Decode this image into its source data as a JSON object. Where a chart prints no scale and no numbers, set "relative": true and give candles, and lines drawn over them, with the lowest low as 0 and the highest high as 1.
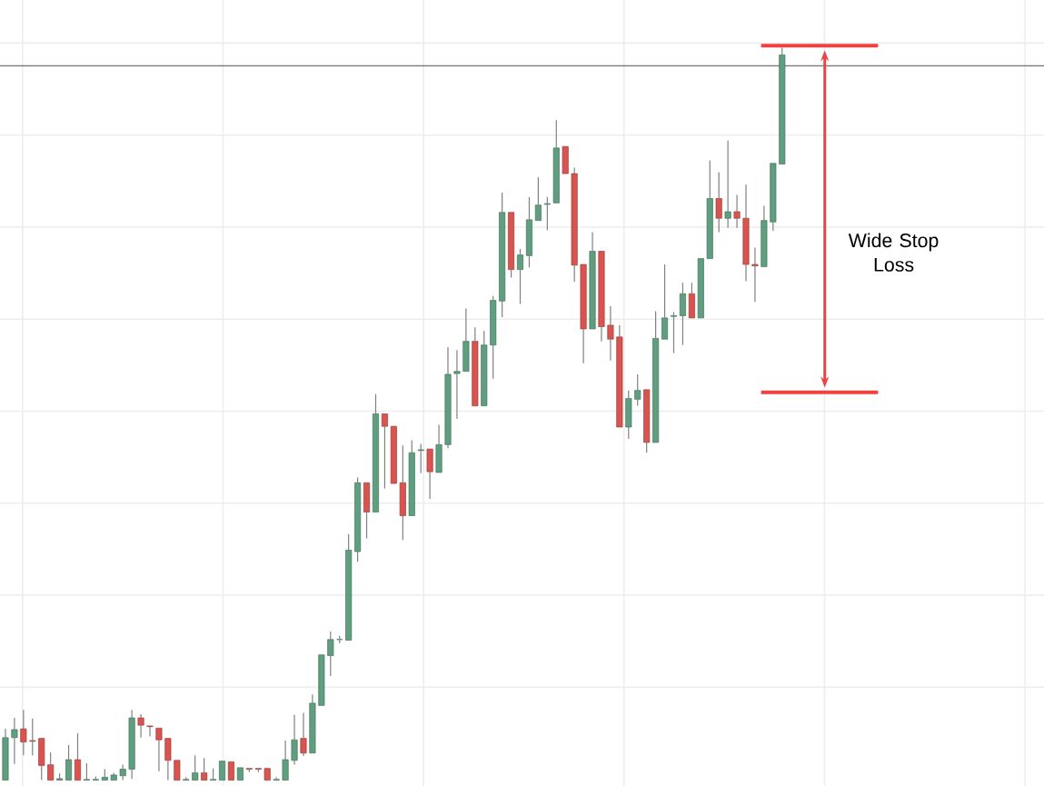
{
  "chart_data": {
    "type": "candlestick",
    "relative": true,
    "grid": true,
    "categories": [
      null,
      null,
      null,
      null,
      null,
      null,
      null,
      null,
      null,
      null,
      null,
      null,
      null,
      null,
      null,
      null,
      null,
      null,
      null,
      null,
      null,
      null,
      null,
      null,
      null,
      null,
      null,
      null,
      null,
      null,
      null,
      null,
      null,
      null,
      null,
      null,
      null,
      null,
      null,
      null,
      null,
      null,
      null,
      null,
      null,
      null,
      null,
      null,
      null,
      null,
      null,
      null,
      null,
      null,
      null,
      null,
      null,
      null,
      null,
      null,
      null,
      null,
      null,
      null,
      null,
      null,
      null,
      null,
      null,
      null,
      null,
      null,
      null,
      null,
      null,
      null,
      null,
      null,
      null,
      null,
      null,
      null,
      null,
      null,
      null,
      null,
      null
    ],
    "ohlc": [
      [
        0,
        0.07,
        0,
        0.058
      ],
      [
        0.058,
        0.085,
        0.022,
        0.069
      ],
      [
        0.07,
        0.096,
        0.034,
        0.052
      ],
      [
        0.054,
        0.084,
        0.034,
        0.053
      ],
      [
        0.057,
        0.057,
        0,
        0.02
      ],
      [
        0.021,
        0.038,
        0,
        0
      ],
      [
        0,
        0.009,
        0,
        0.002
      ],
      [
        0,
        0.048,
        0,
        0.028
      ],
      [
        0.028,
        0.064,
        0,
        0
      ],
      [
        0,
        0.023,
        0,
        0.001
      ],
      [
        0,
        0.005,
        0,
        0.001
      ],
      [
        0,
        0.015,
        0,
        0.004
      ],
      [
        0,
        0.01,
        0,
        0.007
      ],
      [
        0.006,
        0.021,
        0,
        0.015
      ],
      [
        0.015,
        0.096,
        0.002,
        0.085
      ],
      [
        0.085,
        0.09,
        0.058,
        0.075
      ],
      [
        0.074,
        0.074,
        0.06,
        0.073
      ],
      [
        0.071,
        0.071,
        0.012,
        0.055
      ],
      [
        0.057,
        0.057,
        0,
        0.027
      ],
      [
        0.027,
        0.027,
        0,
        0
      ],
      [
        0,
        0.004,
        0,
        0.001
      ],
      [
        0,
        0.034,
        0,
        0.01
      ],
      [
        0.01,
        0.03,
        0,
        0
      ],
      [
        0,
        0.016,
        0,
        0.001
      ],
      [
        0,
        0.026,
        0,
        0.026
      ],
      [
        0.025,
        0.025,
        0,
        0
      ],
      [
        0,
        0.017,
        0,
        0.017
      ],
      [
        0.016,
        0.016,
        0.011,
        0.015
      ],
      [
        0.016,
        0.016,
        0.011,
        0.015
      ],
      [
        0.016,
        0.016,
        0,
        0
      ],
      [
        0,
        0.004,
        0,
        0.001
      ],
      [
        0,
        0.054,
        0,
        0.028
      ],
      [
        0.027,
        0.089,
        0.021,
        0.055
      ],
      [
        0.057,
        0.092,
        0.033,
        0.037
      ],
      [
        0.037,
        0.117,
        0.037,
        0.105
      ],
      [
        0.102,
        0.171,
        0.102,
        0.171
      ],
      [
        0.17,
        0.203,
        0.142,
        0.192
      ],
      [
        0.192,
        0.197,
        0.187,
        0.192
      ],
      [
        0.191,
        0.336,
        0.191,
        0.314
      ],
      [
        0.312,
        0.413,
        0.298,
        0.406
      ],
      [
        0.406,
        0.406,
        0.33,
        0.366
      ],
      [
        0.366,
        0.527,
        0.366,
        0.5
      ],
      [
        0.5,
        0.5,
        0.398,
        0.483
      ],
      [
        0.483,
        0.483,
        0.405,
        0.405
      ],
      [
        0.406,
        0.457,
        0.328,
        0.361
      ],
      [
        0.361,
        0.464,
        0.361,
        0.447
      ],
      [
        0.45,
        0.459,
        0.419,
        0.451
      ],
      [
        0.452,
        0.452,
        0.384,
        0.421
      ],
      [
        0.42,
        0.485,
        0.42,
        0.458
      ],
      [
        0.458,
        0.591,
        0.453,
        0.554
      ],
      [
        0.555,
        0.587,
        0.493,
        0.558
      ],
      [
        0.558,
        0.644,
        0.558,
        0.599
      ],
      [
        0.599,
        0.618,
        0.511,
        0.511
      ],
      [
        0.511,
        0.613,
        0.511,
        0.594
      ],
      [
        0.594,
        0.661,
        0.548,
        0.655
      ],
      [
        0.654,
        0.802,
        0.632,
        0.775
      ],
      [
        0.775,
        0.775,
        0.686,
        0.697
      ],
      [
        0.697,
        0.725,
        0.65,
        0.717
      ],
      [
        0.716,
        0.796,
        0.7,
        0.765
      ],
      [
        0.764,
        0.823,
        0.764,
        0.785
      ],
      [
        0.786,
        0.796,
        0.751,
        0.787
      ],
      [
        0.788,
        0.901,
        0.788,
        0.863
      ],
      [
        0.865,
        0.865,
        0.828,
        0.828
      ],
      [
        0.828,
        0.836,
        0.68,
        0.703
      ],
      [
        0.704,
        0.704,
        0.569,
        0.616
      ],
      [
        0.616,
        0.748,
        0.616,
        0.722
      ],
      [
        0.722,
        0.722,
        0.599,
        0.619
      ],
      [
        0.621,
        0.647,
        0.573,
        0.602
      ],
      [
        0.605,
        0.621,
        0.482,
        0.482
      ],
      [
        0.482,
        0.532,
        0.466,
        0.521
      ],
      [
        0.52,
        0.554,
        0.511,
        0.532
      ],
      [
        0.533,
        0.533,
        0.447,
        0.461
      ],
      [
        0.461,
        0.64,
        0.461,
        0.603
      ],
      [
        0.602,
        0.704,
        0.602,
        0.631
      ],
      [
        0.633,
        0.639,
        0.583,
        0.634
      ],
      [
        0.634,
        0.679,
        0.594,
        0.664
      ],
      [
        0.664,
        0.679,
        0.631,
        0.631
      ],
      [
        0.631,
        0.712,
        0.631,
        0.712
      ],
      [
        0.712,
        0.846,
        0.712,
        0.794
      ],
      [
        0.794,
        0.83,
        0.748,
        0.767
      ],
      [
        0.767,
        0.873,
        0.754,
        0.776
      ],
      [
        0.776,
        0.799,
        0.754,
        0.767
      ],
      [
        0.767,
        0.813,
        0.681,
        0.704
      ],
      [
        0.704,
        0.727,
        0.653,
        0.702
      ],
      [
        0.701,
        0.784,
        0.701,
        0.764
      ],
      [
        0.762,
        0.842,
        0.75,
        0.842
      ],
      [
        0.841,
        1.0,
        0.841,
        0.99
      ]
    ],
    "ref_lines": [
      {
        "axis": "y",
        "value": 0.975,
        "color": "#7a7a7a"
      }
    ],
    "annotations": [
      "Wide Stop Loss"
    ]
  }
}
